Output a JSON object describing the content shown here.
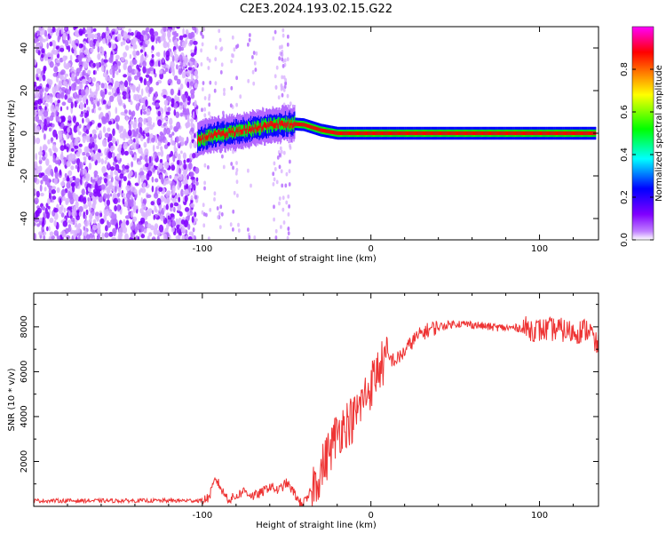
{
  "title": "C2E3.2024.193.02.15.G22",
  "chart_data": [
    {
      "type": "heatmap",
      "xlabel": "Height of straight line (km)",
      "ylabel": "Frequency (Hz)",
      "xlim": [
        -200,
        135
      ],
      "ylim": [
        -50,
        50
      ],
      "xticks": [
        -100,
        0,
        100
      ],
      "xtick_labels": [
        "-100",
        "0",
        "100"
      ],
      "yticks": [
        -40,
        -20,
        0,
        20,
        40
      ],
      "ytick_labels": [
        "-40",
        "-20",
        "0",
        "20",
        "40"
      ],
      "grid": false,
      "colorbar": {
        "label": "Normalized spectral amplitude",
        "range": [
          0,
          1
        ],
        "ticks": [
          0.0,
          0.2,
          0.4,
          0.6,
          0.8
        ],
        "tick_labels": [
          "0.0",
          "0.2",
          "0.4",
          "0.6",
          "0.8"
        ],
        "colors": [
          "#ffffff",
          "#8000ff",
          "#0000ff",
          "#00ffff",
          "#00ff00",
          "#ffff00",
          "#ff8000",
          "#ff0000",
          "#ff00ff"
        ]
      },
      "ridge": {
        "x": [
          -103,
          -95,
          -85,
          -75,
          -65,
          -55,
          -48,
          -40,
          -30,
          -20,
          -10,
          0,
          20,
          60,
          100,
          133
        ],
        "y": [
          -3,
          -1,
          0,
          1.5,
          3,
          4,
          4.5,
          4,
          1.5,
          0,
          0,
          0,
          0,
          0,
          0,
          0
        ]
      },
      "noise_region": {
        "x": [
          -200,
          -103
        ],
        "y": [
          -50,
          50
        ]
      }
    },
    {
      "type": "line",
      "xlabel": "Height of straight line (km)",
      "ylabel": "SNR (10 * v/v)",
      "xlim": [
        -200,
        135
      ],
      "ylim": [
        0,
        9500
      ],
      "xticks": [
        -100,
        0,
        100
      ],
      "xtick_labels": [
        "-100",
        "0",
        "100"
      ],
      "yticks": [
        2000,
        4000,
        6000,
        8000
      ],
      "ytick_labels": [
        "2000",
        "4000",
        "6000",
        "8000"
      ],
      "grid": false,
      "color": "#ee3333",
      "x": [
        -200,
        -150,
        -100,
        -96,
        -92,
        -88,
        -84,
        -80,
        -75,
        -70,
        -65,
        -60,
        -55,
        -50,
        -46,
        -42,
        -38,
        -34,
        -30,
        -25,
        -20,
        -15,
        -10,
        -5,
        0,
        5,
        10,
        15,
        20,
        25,
        30,
        35,
        40,
        50,
        60,
        70,
        80,
        90,
        100,
        110,
        120,
        130,
        133
      ],
      "y": [
        250,
        250,
        260,
        400,
        1250,
        650,
        300,
        450,
        700,
        450,
        600,
        900,
        700,
        1050,
        650,
        150,
        250,
        1000,
        1500,
        2400,
        3300,
        3700,
        3900,
        4700,
        5400,
        6200,
        6600,
        6500,
        6900,
        7400,
        7700,
        7900,
        8000,
        8150,
        8100,
        8000,
        7950,
        7950,
        7850,
        7900,
        7750,
        7900,
        7200
      ]
    }
  ]
}
